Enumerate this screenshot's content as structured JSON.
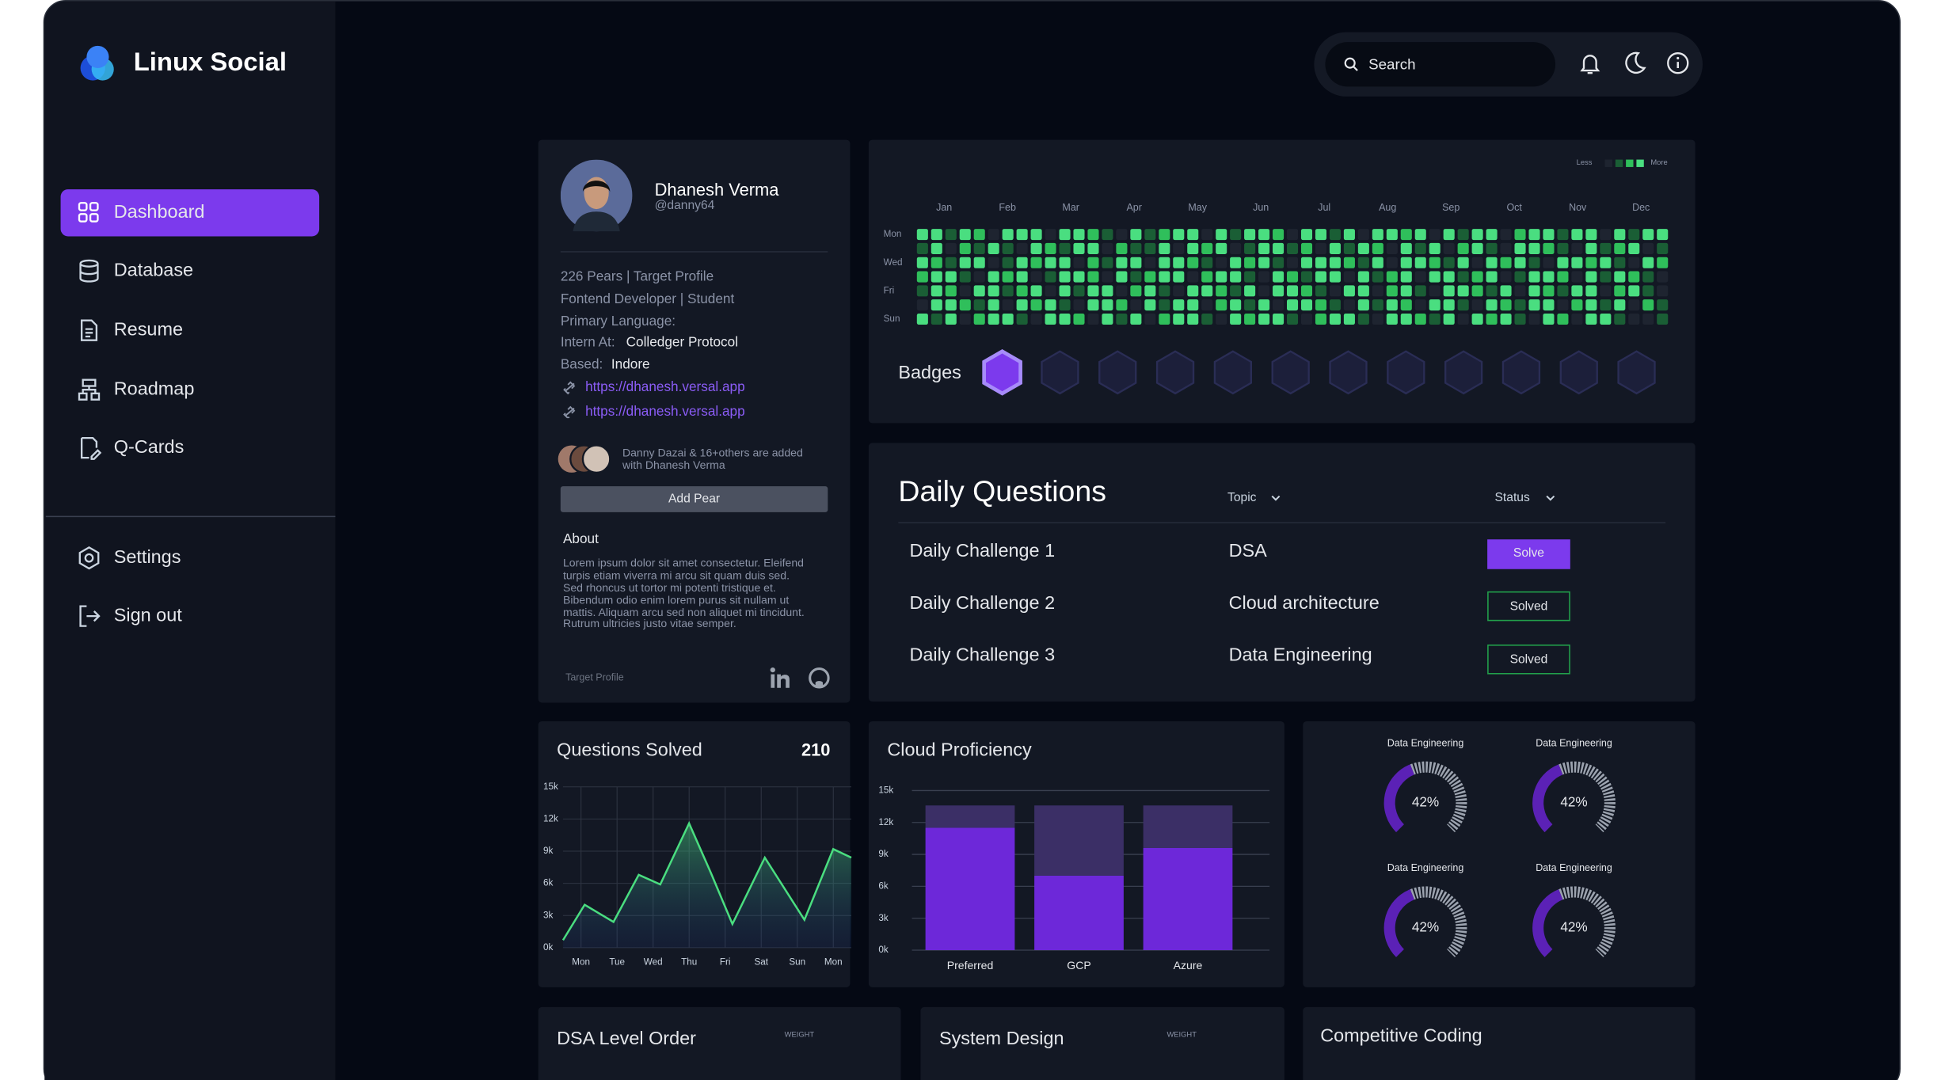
{
  "app": {
    "name": "Linux Social"
  },
  "nav": {
    "items": [
      "Dashboard",
      "Database",
      "Resume",
      "Roadmap",
      "Q-Cards"
    ],
    "bottom": [
      "Settings",
      "Sign out"
    ]
  },
  "topbar": {
    "search_placeholder": "Search"
  },
  "profile": {
    "name": "Dhanesh Verma",
    "handle": "@danny64",
    "summary": "226 Pears | Target Profile",
    "role": "Fontend Developer | Student",
    "primary_language": "Primary Language:",
    "intern_label": "Intern At:",
    "intern_value": "Colledger Protocol",
    "based_label": "Based:",
    "based_value": "Indore",
    "links": [
      "https://dhanesh.versal.app",
      "https://dhanesh.versal.app"
    ],
    "peers_note": "Danny Dazai & 16+others are added with Dhanesh Verma",
    "add_button": "Add Pear",
    "about_title": "About",
    "about_text": "Lorem ipsum dolor sit amet consectetur. Eleifend turpis etiam viverra mi arcu sit quam duis sed. Sed rhoncus ut tortor mi potenti tristique et. Bibendum odio enim lorem purus sit nullam ut mattis. Aliquam arcu sed non aliquet mi tincidunt. Rutrum ultricies justo vitae semper.",
    "footer": "Target Profile"
  },
  "activity": {
    "legend_less": "Less",
    "legend_more": "More",
    "months": [
      "Jan",
      "Feb",
      "Mar",
      "Apr",
      "May",
      "Jun",
      "Jul",
      "Aug",
      "Sep",
      "Oct",
      "Nov",
      "Dec"
    ],
    "days": [
      "Mon",
      "Wed",
      "Fri",
      "Sun"
    ],
    "colors": [
      "#1e2430",
      "#1a5e35",
      "#2fbf5b",
      "#4ade80"
    ],
    "levels": [
      [
        3,
        3,
        1,
        3,
        2,
        0,
        3,
        3,
        3,
        0,
        3,
        3,
        2,
        1,
        0,
        3,
        1,
        2,
        3,
        3,
        0,
        3,
        1,
        3,
        3,
        2,
        0,
        3,
        3,
        1,
        3,
        0,
        3,
        3,
        2,
        3,
        0,
        3,
        1,
        3,
        3,
        0,
        2,
        3,
        3,
        1,
        3,
        3,
        0,
        3,
        1,
        3,
        3
      ],
      [
        1,
        3,
        0,
        2,
        1,
        3,
        1,
        0,
        3,
        2,
        1,
        3,
        3,
        0,
        2,
        1,
        1,
        3,
        0,
        3,
        2,
        3,
        0,
        1,
        3,
        3,
        1,
        2,
        0,
        3,
        1,
        3,
        2,
        0,
        3,
        1,
        3,
        0,
        2,
        3,
        1,
        0,
        3,
        3,
        2,
        1,
        0,
        3,
        1,
        2,
        3,
        0,
        1
      ],
      [
        3,
        2,
        1,
        3,
        3,
        0,
        1,
        3,
        2,
        3,
        3,
        0,
        2,
        1,
        3,
        3,
        0,
        3,
        3,
        2,
        1,
        0,
        3,
        2,
        3,
        1,
        0,
        3,
        3,
        3,
        2,
        1,
        3,
        0,
        3,
        3,
        2,
        1,
        3,
        0,
        3,
        2,
        3,
        1,
        0,
        3,
        3,
        2,
        3,
        1,
        0,
        3,
        2
      ],
      [
        2,
        3,
        3,
        1,
        0,
        3,
        2,
        3,
        0,
        1,
        3,
        3,
        2,
        0,
        3,
        1,
        2,
        3,
        3,
        0,
        2,
        3,
        3,
        1,
        0,
        3,
        2,
        1,
        3,
        3,
        0,
        3,
        1,
        2,
        3,
        0,
        3,
        3,
        1,
        2,
        3,
        0,
        1,
        3,
        3,
        2,
        0,
        3,
        1,
        3,
        2,
        1,
        0
      ],
      [
        1,
        3,
        2,
        0,
        3,
        3,
        1,
        2,
        3,
        0,
        3,
        1,
        3,
        3,
        0,
        2,
        3,
        1,
        0,
        3,
        3,
        2,
        1,
        3,
        0,
        3,
        3,
        2,
        1,
        0,
        3,
        3,
        0,
        2,
        3,
        1,
        0,
        3,
        3,
        2,
        1,
        3,
        0,
        3,
        2,
        1,
        3,
        3,
        0,
        2,
        3,
        1,
        0
      ],
      [
        0,
        3,
        3,
        2,
        1,
        3,
        0,
        3,
        2,
        3,
        1,
        0,
        3,
        3,
        2,
        0,
        3,
        1,
        3,
        3,
        0,
        2,
        3,
        1,
        3,
        0,
        3,
        3,
        2,
        1,
        0,
        3,
        1,
        3,
        2,
        0,
        3,
        3,
        1,
        0,
        3,
        2,
        1,
        3,
        3,
        0,
        2,
        3,
        1,
        3,
        0,
        2,
        1
      ],
      [
        3,
        1,
        3,
        0,
        2,
        3,
        3,
        1,
        0,
        3,
        3,
        2,
        0,
        3,
        1,
        3,
        0,
        2,
        3,
        3,
        1,
        0,
        3,
        2,
        3,
        3,
        1,
        0,
        2,
        3,
        3,
        1,
        0,
        3,
        3,
        2,
        1,
        3,
        0,
        3,
        2,
        3,
        1,
        0,
        3,
        2,
        0,
        3,
        3,
        1,
        0,
        0,
        1
      ]
    ]
  },
  "badges": {
    "title": "Badges"
  },
  "daily_questions": {
    "title": "Daily Questions",
    "columns": [
      "Topic",
      "Status"
    ],
    "rows": [
      [
        "Daily Challenge 1",
        "DSA",
        "Solve"
      ],
      [
        "Daily Challenge 2",
        "Cloud architecture",
        "Solved"
      ],
      [
        "Daily Challenge 3",
        "Data Engineering",
        "Solved"
      ]
    ]
  },
  "chart_data": [
    {
      "type": "line",
      "title": "Questions Solved",
      "total": 210,
      "color": "#4ade80",
      "grid": true,
      "x": [
        -0.5,
        0.1,
        0.9,
        1.6,
        2.2,
        3,
        3.6,
        4.2,
        5.1,
        6.2,
        7,
        7.5
      ],
      "values": [
        700,
        4000,
        2400,
        6800,
        5900,
        11600,
        7000,
        2200,
        8400,
        2600,
        9200,
        8400
      ],
      "xlim": [
        -0.5,
        7.5
      ],
      "xticks": [
        {
          "value": 0,
          "label": "Mon"
        },
        {
          "value": 1,
          "label": "Tue"
        },
        {
          "value": 2,
          "label": "Wed"
        },
        {
          "value": 3,
          "label": "Thu"
        },
        {
          "value": 4,
          "label": "Fri"
        },
        {
          "value": 5,
          "label": "Sat"
        },
        {
          "value": 6,
          "label": "Sun"
        },
        {
          "value": 7,
          "label": "Mon"
        }
      ],
      "ylim": [
        0,
        15000
      ],
      "yticks": [
        {
          "value": 0,
          "label": "0k"
        },
        {
          "value": 3000,
          "label": "3k"
        },
        {
          "value": 6000,
          "label": "6k"
        },
        {
          "value": 9000,
          "label": "9k"
        },
        {
          "value": 12000,
          "label": "12k"
        },
        {
          "value": 15000,
          "label": "15k"
        }
      ]
    },
    {
      "type": "bar",
      "stacked": true,
      "title": "Cloud Proficiency",
      "grid": true,
      "categories": [
        "Preferred",
        "GCP",
        "Azure"
      ],
      "series": [
        {
          "color": "#6d28d9",
          "values": [
            11500,
            7000,
            9600
          ]
        },
        {
          "color": "#3b2f66",
          "values": [
            2100,
            6600,
            4000
          ]
        }
      ],
      "ylim": [
        0,
        15000
      ],
      "yticks": [
        {
          "value": 0,
          "label": "0k"
        },
        {
          "value": 3000,
          "label": "3k"
        },
        {
          "value": 6000,
          "label": "6k"
        },
        {
          "value": 9000,
          "label": "9k"
        },
        {
          "value": 12000,
          "label": "12k"
        },
        {
          "value": 15000,
          "label": "15k"
        }
      ]
    },
    {
      "type": "gauge",
      "color": "#5b21b6",
      "track_color": "#9ca3af",
      "categories": [
        "Data Engineering",
        "Data Engineering",
        "Data Engineering",
        "Data Engineering"
      ],
      "values": [
        42,
        42,
        42,
        42
      ],
      "value_labels": [
        "42%",
        "42%",
        "42%",
        "42%"
      ],
      "ylim": [
        0,
        100
      ]
    }
  ],
  "bottom_cards": [
    {
      "title": "DSA Level Order",
      "label": "WEIGHT"
    },
    {
      "title": "System Design",
      "label": "WEIGHT"
    },
    {
      "title": "Competitive Coding"
    }
  ]
}
